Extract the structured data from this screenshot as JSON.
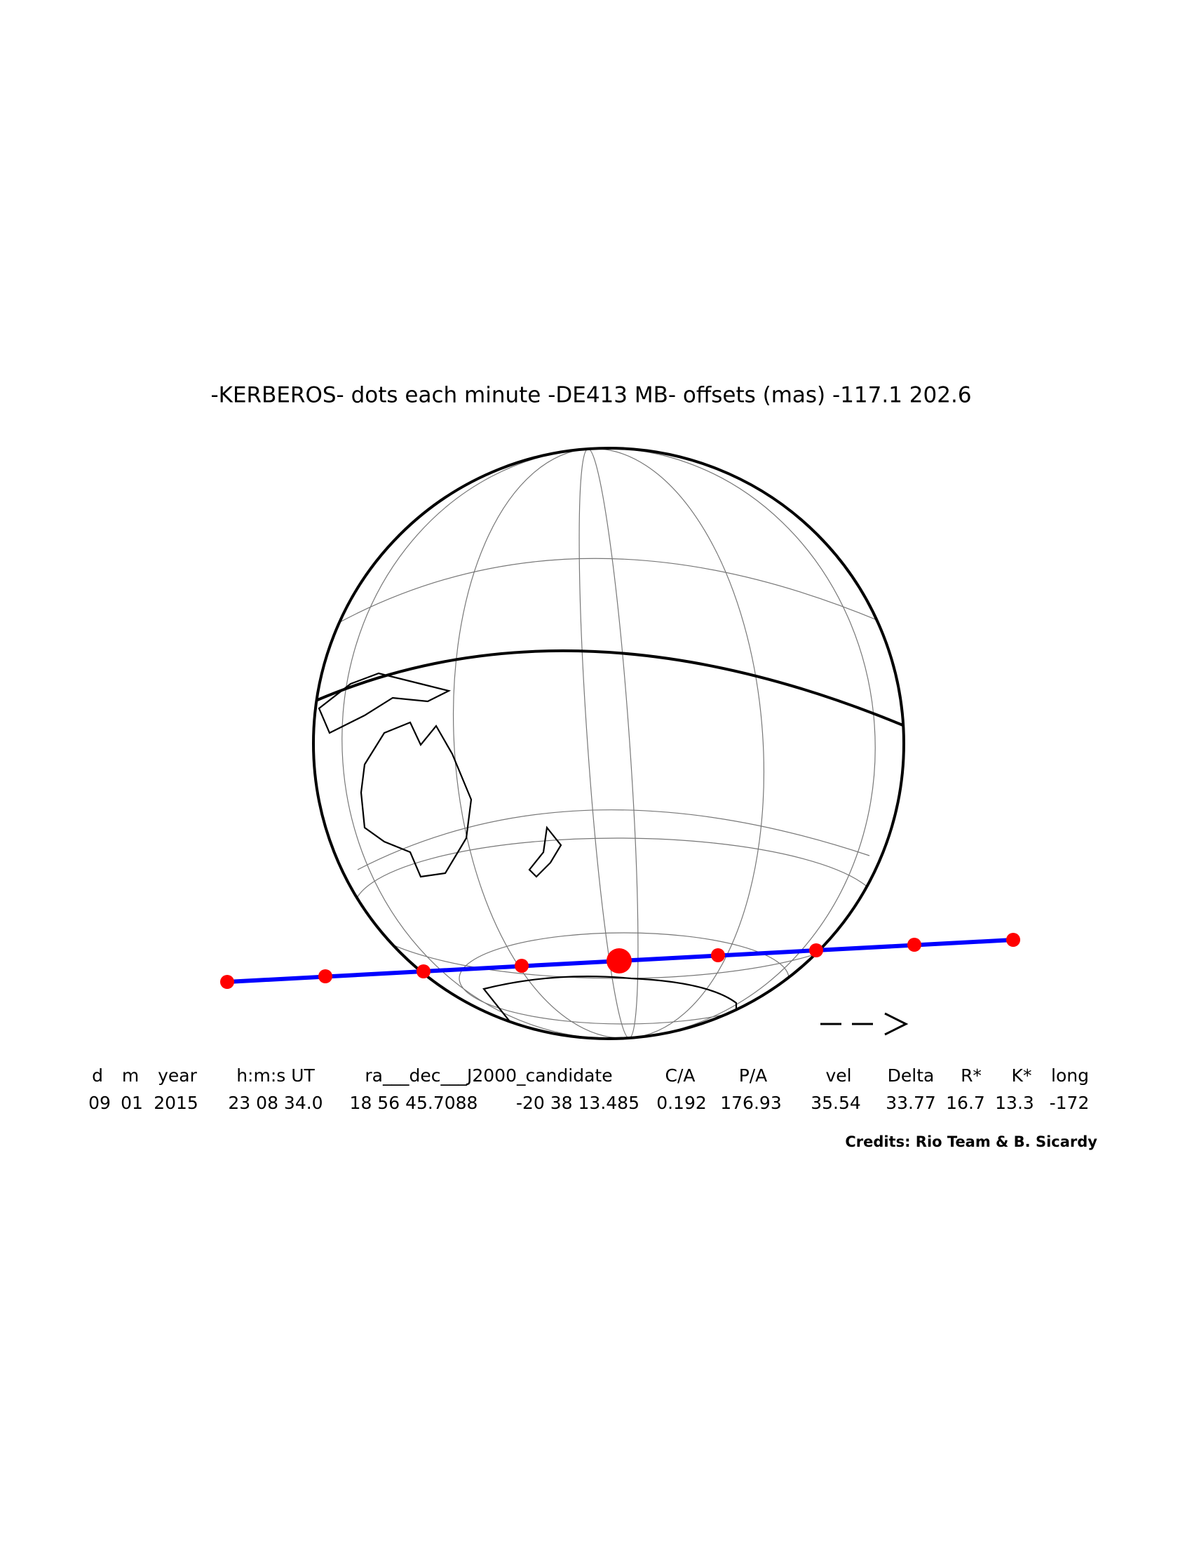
{
  "title": "-KERBEROS- dots each minute -DE413 MB- offsets (mas) -117.1   202.6",
  "table": {
    "headers": [
      "d",
      "m",
      "year",
      "h:m:s UT",
      "ra___dec___J2000_candidate",
      "C/A",
      "P/A",
      "vel",
      "Delta",
      "R*",
      "K*",
      "long"
    ],
    "values": [
      "09",
      "01",
      "2015",
      "23 08 34.0",
      "18 56 45.7088",
      "-20 38 13.485",
      "0.192",
      "176.93",
      "35.54",
      "33.77",
      "16.7",
      "13.3",
      "-172"
    ]
  },
  "credits": "Credits: Rio Team & B. Sicardy"
}
